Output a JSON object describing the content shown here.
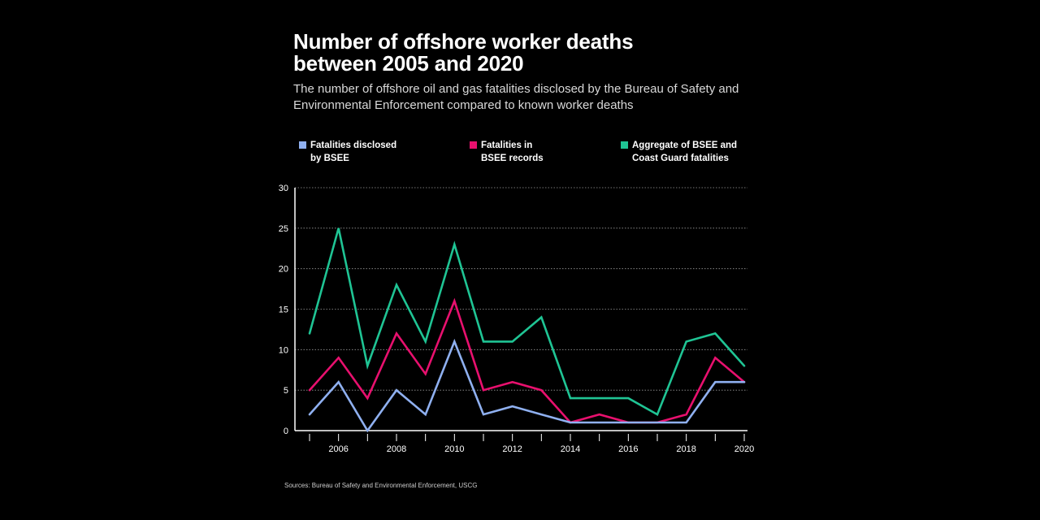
{
  "title": "Number of offshore worker deaths\nbetween 2005 and 2020",
  "subtitle": "The number of offshore oil and gas fatalities disclosed by the Bureau of Safety and Environmental Enforcement compared to known worker deaths",
  "source": "Sources: Bureau of Safety and Environmental Enforcement, USCG",
  "chart_data": {
    "type": "line",
    "title": "Number of offshore worker deaths between 2005 and 2020",
    "xlabel": "",
    "ylabel": "",
    "x": [
      2005,
      2006,
      2007,
      2008,
      2009,
      2010,
      2011,
      2012,
      2013,
      2014,
      2015,
      2016,
      2017,
      2018,
      2019,
      2020
    ],
    "x_tick_labels": [
      "2006",
      "2008",
      "2010",
      "2012",
      "2014",
      "2016",
      "2018",
      "2020"
    ],
    "y_tick_labels": [
      "0",
      "5",
      "10",
      "15",
      "20",
      "25",
      "30"
    ],
    "ylim": [
      0,
      30
    ],
    "xlim": [
      2005,
      2020
    ],
    "grid": "horizontal dotted",
    "legend_position": "top",
    "series": [
      {
        "name": "Fatalities disclosed\nby BSEE",
        "color": "#8fb0f0",
        "values": [
          2,
          6,
          0,
          5,
          2,
          11,
          2,
          3,
          2,
          1,
          1,
          1,
          1,
          1,
          6,
          6
        ]
      },
      {
        "name": "Fatalities in\nBSEE records",
        "color": "#e8106e",
        "values": [
          5,
          9,
          4,
          12,
          7,
          16,
          5,
          6,
          5,
          1,
          2,
          1,
          1,
          2,
          9,
          6
        ]
      },
      {
        "name": "Aggregate of BSEE and\nCoast Guard fatalities",
        "color": "#1fc494",
        "values": [
          12,
          25,
          8,
          18,
          11,
          23,
          11,
          11,
          14,
          4,
          4,
          4,
          2,
          11,
          12,
          8
        ]
      }
    ]
  }
}
